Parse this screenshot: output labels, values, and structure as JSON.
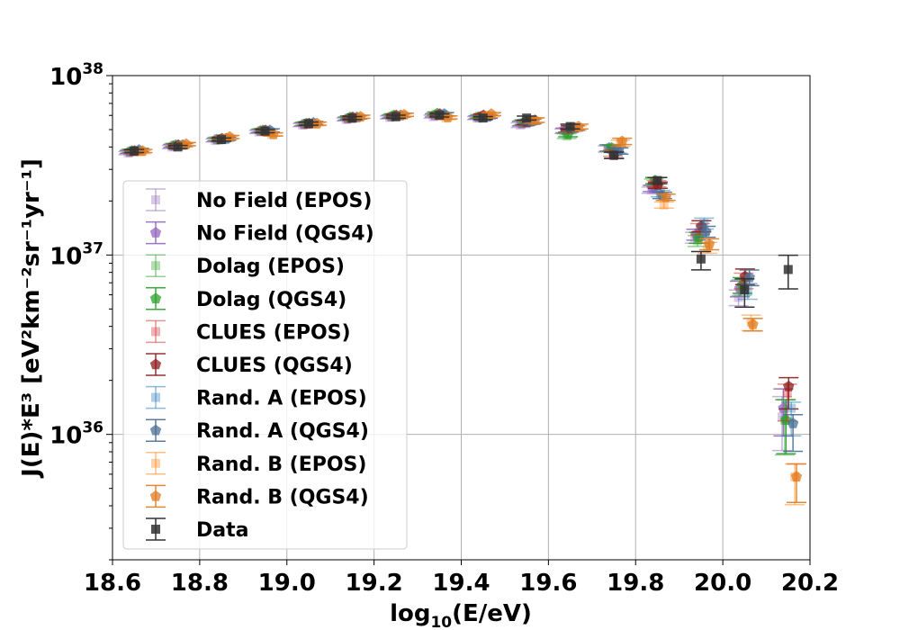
{
  "chart_data": {
    "type": "scatter",
    "title": "",
    "xlabel_main": "log",
    "xlabel_sub": "10",
    "xlabel_rest": "(E/eV)",
    "ylabel_text": "J(E)*E³  [eV²km⁻²sr⁻¹yr⁻¹]",
    "x_ticks": [
      "18.6",
      "18.8",
      "19.0",
      "19.2",
      "19.4",
      "19.6",
      "19.8",
      "20.0",
      "20.2"
    ],
    "y_ticks": [
      {
        "base": "10",
        "exp": "38",
        "value": 1e+38
      },
      {
        "base": "10",
        "exp": "37",
        "value": 1e+37
      },
      {
        "base": "10",
        "exp": "36",
        "value": 1e+36
      }
    ],
    "xlim": [
      18.6,
      20.2
    ],
    "ylim": [
      2e+35,
      1e+38
    ],
    "yscale": "log",
    "grid": true,
    "legend_position": "lower-left",
    "bins": [
      18.65,
      18.75,
      18.85,
      18.95,
      19.05,
      19.15,
      19.25,
      19.35,
      19.45,
      19.55,
      19.65,
      19.75,
      19.85,
      19.95,
      20.05,
      20.15
    ],
    "series": [
      {
        "name": "No Field (EPOS)",
        "color": "#9467bd",
        "marker": "square",
        "alpha": 0.35,
        "offset": -0.014,
        "values": [
          3.7e+37,
          4e+37,
          4.35e+37,
          4.85e+37,
          5.3e+37,
          5.7e+37,
          5.85e+37,
          5.9e+37,
          5.8e+37,
          5.3e+37,
          4.9e+37,
          3.9e+37,
          2.3e+37,
          1.25e+37,
          5.8e+36,
          1.25e+36
        ],
        "err_lo": [
          0.02,
          0.02,
          0.02,
          0.02,
          0.02,
          0.02,
          0.02,
          0.02,
          0.02,
          0.03,
          0.03,
          0.04,
          0.04,
          0.07,
          0.1,
          0.35
        ],
        "err_hi": [
          0.02,
          0.02,
          0.02,
          0.02,
          0.02,
          0.02,
          0.02,
          0.02,
          0.02,
          0.03,
          0.03,
          0.04,
          0.04,
          0.07,
          0.1,
          0.3
        ]
      },
      {
        "name": "No Field (QGS4)",
        "color": "#9467bd",
        "marker": "pentagon",
        "alpha": 0.75,
        "offset": -0.011,
        "values": [
          3.75e+37,
          4.05e+37,
          4.4e+37,
          4.9e+37,
          5.35e+37,
          5.75e+37,
          5.9e+37,
          6e+37,
          5.85e+37,
          5.4e+37,
          4.95e+37,
          3.95e+37,
          2.35e+37,
          1.3e+37,
          6.5e+36,
          1.4e+36
        ],
        "err_lo": [
          0.02,
          0.02,
          0.02,
          0.02,
          0.02,
          0.02,
          0.02,
          0.02,
          0.02,
          0.03,
          0.03,
          0.04,
          0.04,
          0.07,
          0.1,
          0.3
        ],
        "err_hi": [
          0.02,
          0.02,
          0.02,
          0.02,
          0.02,
          0.02,
          0.02,
          0.02,
          0.02,
          0.03,
          0.03,
          0.04,
          0.04,
          0.07,
          0.1,
          0.28
        ]
      },
      {
        "name": "Dolag (EPOS)",
        "color": "#2ca02c",
        "marker": "square",
        "alpha": 0.35,
        "offset": -0.008,
        "values": [
          3.8e+37,
          4.1e+37,
          4.45e+37,
          4.95e+37,
          5.4e+37,
          5.8e+37,
          5.95e+37,
          6.1e+37,
          5.95e+37,
          5.45e+37,
          4.6e+37,
          3.95e+37,
          2.55e+37,
          1.2e+37,
          6.6e+36,
          1.2e+36
        ],
        "err_lo": [
          0.02,
          0.02,
          0.02,
          0.02,
          0.02,
          0.02,
          0.02,
          0.02,
          0.02,
          0.03,
          0.03,
          0.04,
          0.04,
          0.07,
          0.1,
          0.36
        ],
        "err_hi": [
          0.02,
          0.02,
          0.02,
          0.02,
          0.02,
          0.02,
          0.02,
          0.02,
          0.02,
          0.03,
          0.03,
          0.04,
          0.04,
          0.07,
          0.1,
          0.3
        ]
      },
      {
        "name": "Dolag (QGS4)",
        "color": "#2ca02c",
        "marker": "pentagon",
        "alpha": 0.75,
        "offset": -0.005,
        "values": [
          3.8e+37,
          4.1e+37,
          4.4e+37,
          4.95e+37,
          5.4e+37,
          5.85e+37,
          6e+37,
          6.15e+37,
          5.9e+37,
          5.5e+37,
          4.7e+37,
          3.95e+37,
          2.6e+37,
          1.25e+37,
          6.8e+36,
          1.2e+36
        ],
        "err_lo": [
          0.02,
          0.02,
          0.02,
          0.02,
          0.02,
          0.02,
          0.02,
          0.02,
          0.02,
          0.03,
          0.03,
          0.04,
          0.04,
          0.07,
          0.1,
          0.35
        ],
        "err_hi": [
          0.02,
          0.02,
          0.02,
          0.02,
          0.02,
          0.02,
          0.02,
          0.02,
          0.02,
          0.03,
          0.03,
          0.04,
          0.04,
          0.07,
          0.1,
          0.3
        ]
      },
      {
        "name": "CLUES (EPOS)",
        "color": "#d62728",
        "marker": "square",
        "alpha": 0.35,
        "offset": -0.002,
        "values": [
          3.75e+37,
          4.05e+37,
          4.4e+37,
          4.9e+37,
          5.35e+37,
          5.75e+37,
          5.9e+37,
          6e+37,
          5.95e+37,
          5.45e+37,
          5e+37,
          3.7e+37,
          2.5e+37,
          1.4e+37,
          7.2e+36,
          1.7e+36
        ],
        "err_lo": [
          0.02,
          0.02,
          0.02,
          0.02,
          0.02,
          0.02,
          0.02,
          0.02,
          0.02,
          0.03,
          0.03,
          0.04,
          0.04,
          0.07,
          0.1,
          0.3
        ],
        "err_hi": [
          0.02,
          0.02,
          0.02,
          0.02,
          0.02,
          0.02,
          0.02,
          0.02,
          0.02,
          0.03,
          0.03,
          0.04,
          0.04,
          0.07,
          0.1,
          0.12
        ]
      },
      {
        "name": "CLUES (QGS4)",
        "color": "#8c1c1c",
        "marker": "pentagon",
        "alpha": 0.75,
        "offset": 0.001,
        "values": [
          3.8e+37,
          4.1e+37,
          4.45e+37,
          4.95e+37,
          5.4e+37,
          5.85e+37,
          6e+37,
          6.1e+37,
          6e+37,
          5.5e+37,
          5.1e+37,
          3.6e+37,
          2.45e+37,
          1.45e+37,
          7.6e+36,
          1.85e+36
        ],
        "err_lo": [
          0.02,
          0.02,
          0.02,
          0.02,
          0.02,
          0.02,
          0.02,
          0.02,
          0.02,
          0.03,
          0.03,
          0.04,
          0.04,
          0.07,
          0.1,
          0.25
        ],
        "err_hi": [
          0.02,
          0.02,
          0.02,
          0.02,
          0.02,
          0.02,
          0.02,
          0.02,
          0.02,
          0.03,
          0.03,
          0.04,
          0.04,
          0.07,
          0.1,
          0.12
        ]
      },
      {
        "name": "Rand. A (EPOS)",
        "color": "#1f77b4",
        "marker": "square",
        "alpha": 0.35,
        "offset": 0.007,
        "values": [
          3.8e+37,
          4.1e+37,
          4.4e+37,
          4.9e+37,
          5.4e+37,
          5.8e+37,
          5.95e+37,
          6.05e+37,
          5.85e+37,
          5.5e+37,
          5.05e+37,
          3.85e+37,
          2.2e+37,
          1.5e+37,
          6.3e+36,
          1.4e+36
        ],
        "err_lo": [
          0.02,
          0.02,
          0.02,
          0.02,
          0.02,
          0.02,
          0.02,
          0.02,
          0.02,
          0.03,
          0.03,
          0.04,
          0.04,
          0.07,
          0.1,
          0.3
        ],
        "err_hi": [
          0.02,
          0.02,
          0.02,
          0.02,
          0.02,
          0.02,
          0.02,
          0.02,
          0.02,
          0.03,
          0.03,
          0.04,
          0.04,
          0.07,
          0.1,
          0.08
        ]
      },
      {
        "name": "Rand. A (QGS4)",
        "color": "#4a6f95",
        "marker": "pentagon",
        "alpha": 0.75,
        "offset": 0.011,
        "values": [
          3.85e+37,
          4.1e+37,
          4.45e+37,
          4.95e+37,
          5.45e+37,
          5.85e+37,
          6e+37,
          6.1e+37,
          5.9e+37,
          5.55e+37,
          5.1e+37,
          3.8e+37,
          2.15e+37,
          1.35e+37,
          7.5e+36,
          1.15e+36
        ],
        "err_lo": [
          0.02,
          0.02,
          0.02,
          0.02,
          0.02,
          0.02,
          0.02,
          0.02,
          0.02,
          0.03,
          0.03,
          0.04,
          0.04,
          0.07,
          0.1,
          0.3
        ],
        "err_hi": [
          0.02,
          0.02,
          0.02,
          0.02,
          0.02,
          0.02,
          0.02,
          0.02,
          0.02,
          0.03,
          0.03,
          0.04,
          0.04,
          0.07,
          0.1,
          0.12
        ]
      },
      {
        "name": "Rand. B (EPOS)",
        "color": "#ff7f0e",
        "marker": "square",
        "alpha": 0.35,
        "offset": 0.015,
        "values": [
          3.75e+37,
          4.1e+37,
          4.5e+37,
          4.7e+37,
          5.35e+37,
          5.85e+37,
          6e+37,
          5.8e+37,
          6e+37,
          5.6e+37,
          5.1e+37,
          4.2e+37,
          1.9e+37,
          1.1e+37,
          4.2e+36,
          5.8e+35
        ],
        "err_lo": [
          0.02,
          0.02,
          0.02,
          0.02,
          0.02,
          0.02,
          0.02,
          0.02,
          0.02,
          0.03,
          0.03,
          0.04,
          0.04,
          0.07,
          0.1,
          0.3
        ],
        "err_hi": [
          0.02,
          0.02,
          0.02,
          0.02,
          0.02,
          0.02,
          0.02,
          0.02,
          0.02,
          0.03,
          0.03,
          0.04,
          0.04,
          0.07,
          0.1,
          0.18
        ]
      },
      {
        "name": "Rand. B (QGS4)",
        "color": "#e07b20",
        "marker": "pentagon",
        "alpha": 0.75,
        "offset": 0.019,
        "values": [
          3.8e+37,
          4.15e+37,
          4.55e+37,
          4.7e+37,
          5.4e+37,
          5.9e+37,
          6.05e+37,
          5.85e+37,
          6.1e+37,
          5.65e+37,
          5.2e+37,
          4.3e+37,
          2.1e+37,
          1.15e+37,
          4.1e+36,
          5.8e+35
        ],
        "err_lo": [
          0.02,
          0.02,
          0.02,
          0.02,
          0.02,
          0.02,
          0.02,
          0.02,
          0.02,
          0.03,
          0.03,
          0.04,
          0.04,
          0.07,
          0.08,
          0.28
        ],
        "err_hi": [
          0.02,
          0.02,
          0.02,
          0.02,
          0.02,
          0.02,
          0.02,
          0.02,
          0.02,
          0.03,
          0.03,
          0.04,
          0.04,
          0.07,
          0.08,
          0.18
        ]
      },
      {
        "name": "Data",
        "color": "#333333",
        "marker": "square",
        "alpha": 0.85,
        "offset": 0.0,
        "values": [
          3.8e+37,
          4e+37,
          4.4e+37,
          4.9e+37,
          5.4e+37,
          5.8e+37,
          5.9e+37,
          6e+37,
          5.8e+37,
          5.8e+37,
          5.2e+37,
          3.6e+37,
          2.6e+37,
          9.5e+36,
          6.4e+36,
          8.3e+36
        ],
        "err_lo": [
          0.02,
          0.02,
          0.02,
          0.02,
          0.02,
          0.02,
          0.02,
          0.02,
          0.02,
          0.025,
          0.03,
          0.04,
          0.04,
          0.13,
          0.2,
          0.22
        ],
        "err_hi": [
          0.02,
          0.02,
          0.02,
          0.02,
          0.02,
          0.02,
          0.02,
          0.02,
          0.02,
          0.025,
          0.03,
          0.04,
          0.04,
          0.1,
          0.15,
          0.2
        ]
      }
    ]
  }
}
